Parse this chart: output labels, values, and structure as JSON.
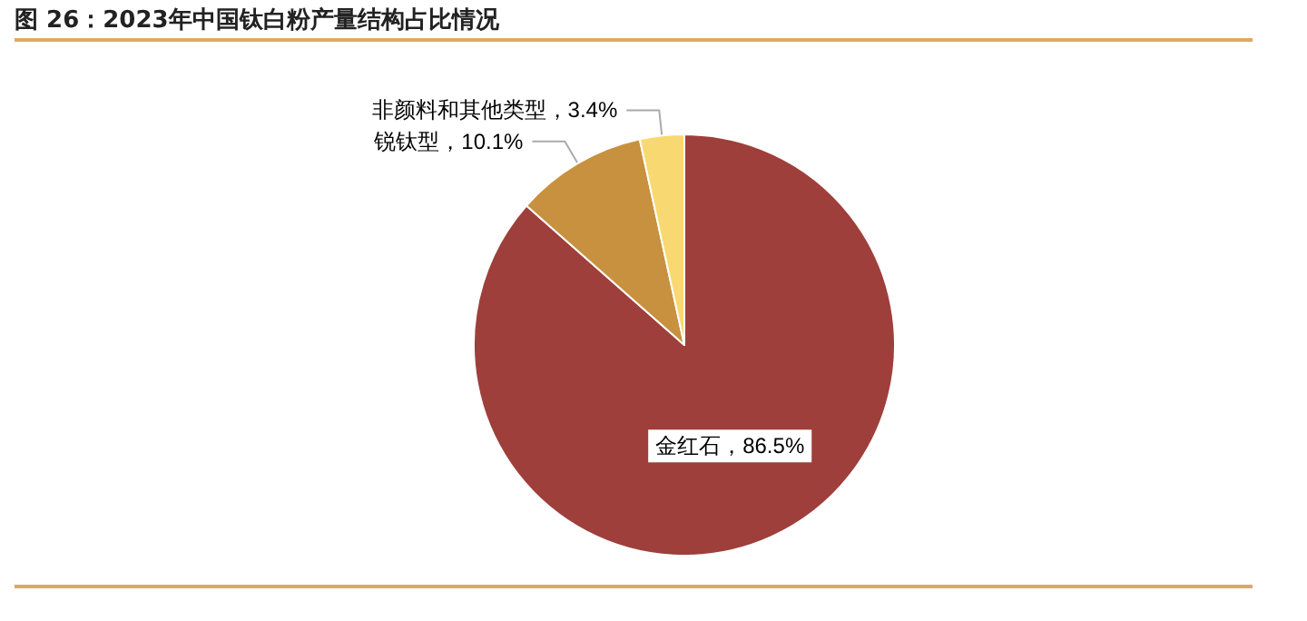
{
  "chart_data": {
    "type": "pie",
    "title": "图 26：2023年中国钛白粉产量结构占比情况",
    "categories": [
      "金红石",
      "锐钛型",
      "非颜料和其他类型"
    ],
    "values": [
      86.5,
      10.1,
      3.4
    ],
    "value_labels": [
      "86.5%",
      "10.1%",
      "3.4%"
    ],
    "colors": [
      "#9e3f3b",
      "#c8913f",
      "#f8d870"
    ],
    "legend": false
  }
}
